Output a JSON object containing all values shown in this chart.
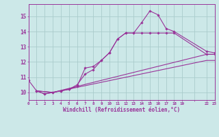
{
  "bg_color": "#cce8e8",
  "grid_color": "#aacccc",
  "line_color": "#993399",
  "xlabel": "Windchill (Refroidissement éolien,°C)",
  "xlim": [
    0,
    23.0
  ],
  "ylim": [
    9.5,
    15.8
  ],
  "yticks": [
    10,
    11,
    12,
    13,
    14,
    15
  ],
  "xtick_labels": [
    "0",
    "1",
    "2",
    "3",
    "4",
    "5",
    "6",
    "7",
    "8",
    "9",
    "10",
    "11",
    "12",
    "13",
    "14",
    "15",
    "16",
    "17",
    "18",
    "19",
    "",
    "22",
    "23"
  ],
  "xtick_positions": [
    0,
    1,
    2,
    3,
    4,
    5,
    6,
    7,
    8,
    9,
    10,
    11,
    12,
    13,
    14,
    15,
    16,
    17,
    18,
    19,
    20.5,
    22,
    23
  ],
  "line1_x": [
    0,
    1,
    2,
    3,
    4,
    5,
    6,
    7,
    8,
    9,
    10,
    11,
    12,
    13,
    14,
    15,
    16,
    17,
    18,
    22,
    23
  ],
  "line1_y": [
    10.8,
    10.1,
    9.9,
    10.0,
    10.1,
    10.2,
    10.4,
    11.6,
    11.7,
    12.1,
    12.6,
    13.5,
    13.9,
    13.9,
    14.6,
    15.35,
    15.1,
    14.2,
    14.0,
    12.7,
    12.6
  ],
  "line2_x": [
    1,
    2,
    3,
    4,
    5,
    6,
    7,
    8,
    9,
    10,
    11,
    12,
    13,
    14,
    15,
    16,
    17,
    18,
    22,
    23
  ],
  "line2_y": [
    10.1,
    9.9,
    10.0,
    10.1,
    10.2,
    10.5,
    11.2,
    11.5,
    12.1,
    12.6,
    13.5,
    13.9,
    13.9,
    13.9,
    13.9,
    13.9,
    13.9,
    13.9,
    12.5,
    12.5
  ],
  "line3_x": [
    1,
    3,
    22,
    23
  ],
  "line3_y": [
    10.1,
    10.0,
    12.5,
    12.5
  ],
  "line4_x": [
    1,
    3,
    22,
    23
  ],
  "line4_y": [
    10.1,
    10.0,
    12.1,
    12.1
  ],
  "marker_line1_x": [
    0,
    1,
    2,
    3,
    4,
    5,
    6,
    7,
    8,
    9,
    10,
    11,
    12,
    13,
    14,
    15,
    16,
    17,
    18,
    22,
    23
  ],
  "marker_line1_y": [
    10.8,
    10.1,
    9.9,
    10.0,
    10.1,
    10.2,
    10.4,
    11.6,
    11.7,
    12.1,
    12.6,
    13.5,
    13.9,
    13.9,
    14.6,
    15.35,
    15.1,
    14.2,
    14.0,
    12.7,
    12.6
  ],
  "marker_line2_x": [
    1,
    2,
    3,
    4,
    5,
    6,
    7,
    8,
    9,
    10,
    11,
    12,
    13,
    14,
    15,
    16,
    17,
    18,
    22,
    23
  ],
  "marker_line2_y": [
    10.1,
    9.9,
    10.0,
    10.1,
    10.2,
    10.5,
    11.2,
    11.5,
    12.1,
    12.6,
    13.5,
    13.9,
    13.9,
    13.9,
    13.9,
    13.9,
    13.9,
    13.9,
    12.5,
    12.5
  ]
}
